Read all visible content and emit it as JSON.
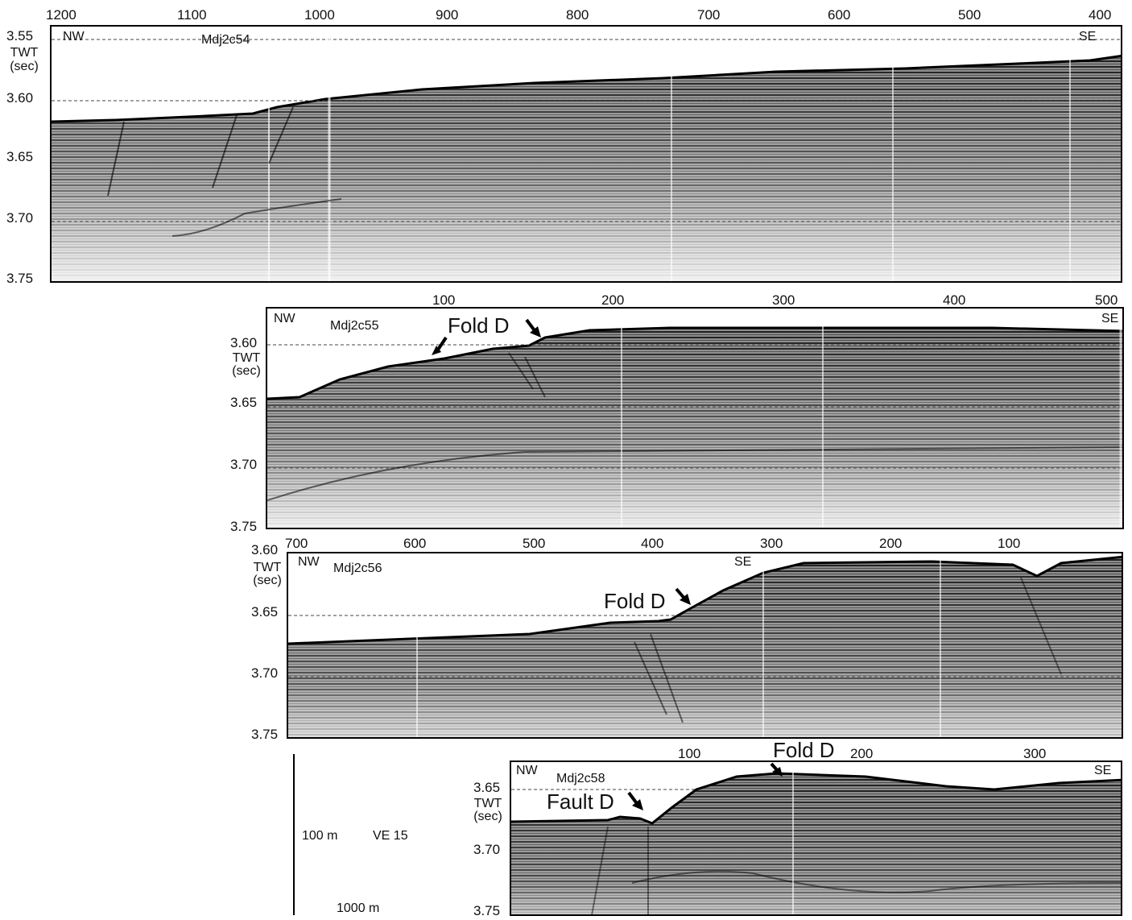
{
  "panels": [
    {
      "id": "Mdj2c54",
      "line": "Mdj2c54",
      "nw": "NW",
      "se": "SE",
      "x_ticks": [
        "1200",
        "1100",
        "1000",
        "900",
        "800",
        "700",
        "600",
        "500",
        "400"
      ],
      "y_ticks": [
        "3.55",
        "3.60",
        "3.65",
        "3.70",
        "3.75"
      ],
      "y_axis_label": [
        "TWT",
        "(sec)"
      ]
    },
    {
      "id": "Mdj2c55",
      "line": "Mdj2c55",
      "nw": "NW",
      "se": "SE",
      "x_ticks": [
        "100",
        "200",
        "300",
        "400",
        "500"
      ],
      "y_ticks": [
        "3.60",
        "3.65",
        "3.70",
        "3.75"
      ],
      "y_axis_label": [
        "TWT",
        "(sec)"
      ],
      "annotation": "Fold D"
    },
    {
      "id": "Mdj2c56",
      "line": "Mdj2c56",
      "nw": "NW",
      "se": "SE",
      "x_ticks": [
        "700",
        "600",
        "500",
        "400",
        "300",
        "200",
        "100"
      ],
      "y_ticks": [
        "3.60",
        "3.65",
        "3.70",
        "3.75"
      ],
      "y_axis_label": [
        "TWT",
        "(sec)"
      ],
      "annotation": "Fold D"
    },
    {
      "id": "Mdj2c58",
      "line": "Mdj2c58",
      "nw": "NW",
      "se": "SE",
      "x_ticks": [
        "100",
        "200",
        "300"
      ],
      "y_ticks": [
        "3.65",
        "3.70",
        "3.75"
      ],
      "y_axis_label": [
        "TWT",
        "(sec)"
      ],
      "annotations": [
        "Fold D",
        "Fault D"
      ]
    }
  ],
  "scale": {
    "vertical": "100 m",
    "exaggeration": "VE 15",
    "horizontal": "1000 m"
  }
}
